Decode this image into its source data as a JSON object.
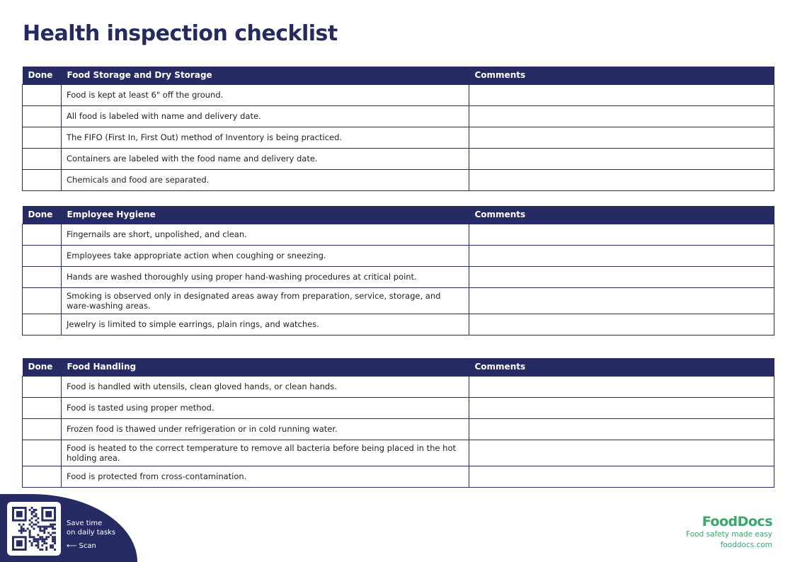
{
  "title": "Health inspection checklist",
  "columns": {
    "done": "Done",
    "comments": "Comments"
  },
  "sections": [
    {
      "name": "Food Storage and Dry Storage",
      "items": [
        "Food is kept at least 6\" off the ground.",
        "All food is labeled with name and delivery date.",
        "The FIFO (First In, First Out) method of Inventory is being practiced.",
        "Containers are labeled with the food name and delivery date.",
        "Chemicals and food are separated."
      ]
    },
    {
      "name": "Employee Hygiene",
      "items": [
        "Fingernails are short, unpolished, and clean.",
        "Employees take appropriate action when coughing or sneezing.",
        "Hands are washed thoroughly using proper hand-washing procedures at critical point.",
        "Smoking is observed only in designated areas away from preparation, service, storage, and ware-washing areas.",
        "Jewelry is limited to simple earrings, plain rings, and watches."
      ]
    },
    {
      "name": "Food Handling",
      "items": [
        "Food is handled with utensils, clean gloved hands, or clean hands.",
        "Food is tasted using proper method.",
        "Frozen food is thawed under refrigeration or in cold running water.",
        "Food is heated to the correct temperature to remove all bacteria before being placed in the hot holding area.",
        "Food is protected from cross-contamination."
      ]
    }
  ],
  "promo": {
    "line1": "Save time",
    "line2": "on daily tasks",
    "scan": "⟵  Scan"
  },
  "logo": {
    "brand": "FoodDocs",
    "tagline": "Food safety made easy",
    "url": "fooddocs.com"
  },
  "colors": {
    "navy": "#272b63",
    "green": "#3aa76d"
  }
}
